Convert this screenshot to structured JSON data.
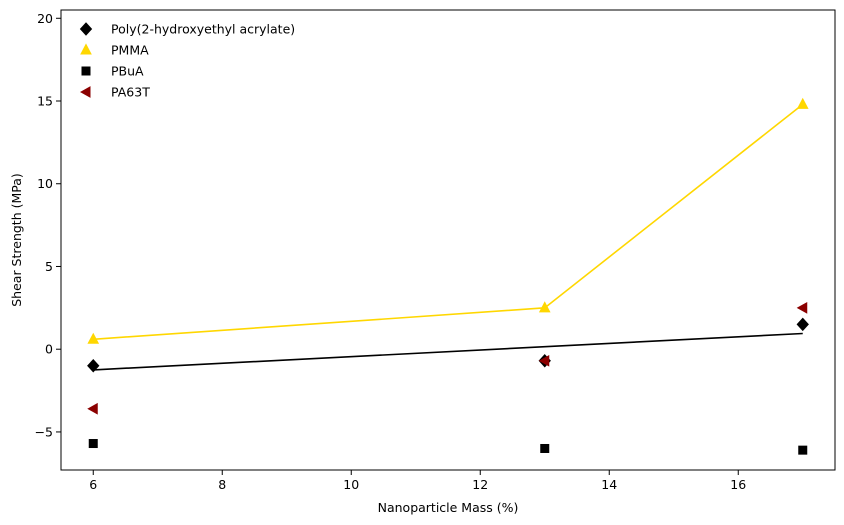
{
  "chart_data": {
    "type": "scatter",
    "title": "",
    "xlabel": "Nanoparticle Mass (%)",
    "ylabel": "Shear Strength (MPa)",
    "xlim": [
      5.5,
      17.5
    ],
    "ylim": [
      -7.3,
      20.5
    ],
    "xticks": [
      6,
      8,
      10,
      12,
      14,
      16
    ],
    "xtick_labels": [
      "6",
      "8",
      "10",
      "12",
      "14",
      "16"
    ],
    "yticks": [
      -5,
      0,
      5,
      10,
      15,
      20
    ],
    "ytick_labels": [
      "−5",
      "0",
      "5",
      "10",
      "15",
      "20"
    ],
    "grid": false,
    "legend_position": "top-left",
    "series": [
      {
        "name": "Poly(2-hydroxyethyl acrylate)",
        "marker": "diamond",
        "color": "#000000",
        "x": [
          6,
          13,
          17
        ],
        "y": [
          -1.0,
          -0.7,
          1.5
        ]
      },
      {
        "name": "PMMA",
        "marker": "triangle-up",
        "color": "#FFD700",
        "x": [
          6,
          13,
          17
        ],
        "y": [
          0.6,
          2.5,
          14.8
        ]
      },
      {
        "name": "PBuA",
        "marker": "square",
        "color": "#000000",
        "x": [
          6,
          13,
          17
        ],
        "y": [
          -5.7,
          -6.0,
          -6.1
        ]
      },
      {
        "name": "PA63T",
        "marker": "triangle-left",
        "color": "#8B0000",
        "x": [
          6,
          13,
          17
        ],
        "y": [
          -3.6,
          -0.7,
          2.5
        ]
      }
    ],
    "lines": [
      {
        "color": "#FFD700",
        "x": [
          6,
          13,
          17
        ],
        "y": [
          0.6,
          2.5,
          14.8
        ]
      },
      {
        "color": "#000000",
        "x": [
          6,
          17
        ],
        "y": [
          -1.25,
          0.95
        ]
      }
    ]
  }
}
